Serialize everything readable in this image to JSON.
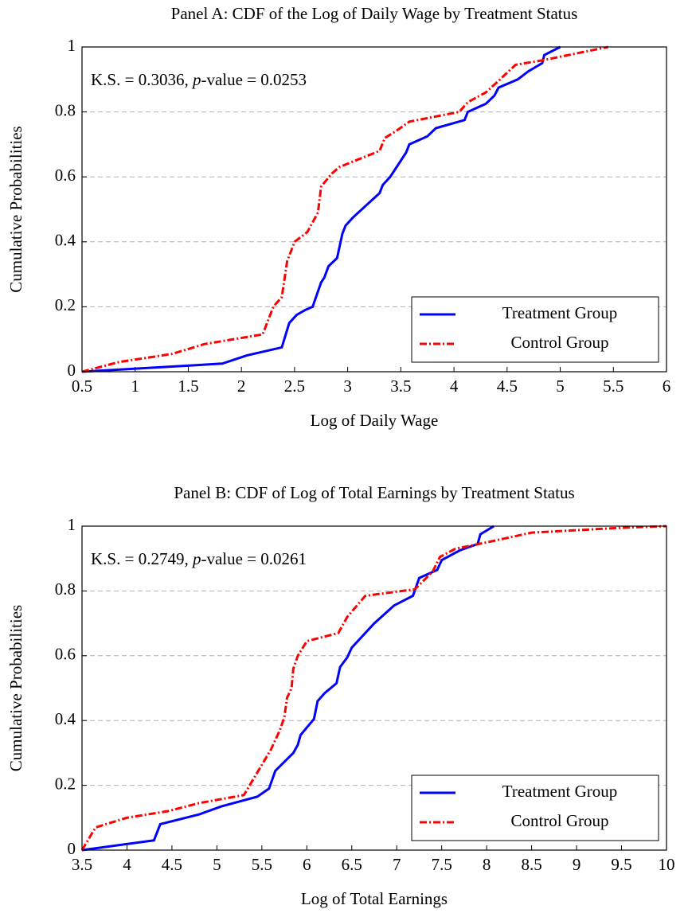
{
  "chart_data": [
    {
      "type": "line",
      "title": "Panel A: CDF of the Log of Daily Wage by Treatment Status",
      "xlabel": "Log of Daily Wage",
      "ylabel": "Cumulative Probabilities",
      "annotation": [
        "K.S. = 0.3036, ",
        "p",
        "-value = 0.0253"
      ],
      "xlim": [
        0.5,
        6
      ],
      "ylim": [
        0,
        1
      ],
      "xticks": [
        0.5,
        1,
        1.5,
        2,
        2.5,
        3,
        3.5,
        4,
        4.5,
        5,
        5.5,
        6
      ],
      "yticks": [
        0,
        0.2,
        0.4,
        0.6,
        0.8,
        1
      ],
      "grid": true,
      "legend": "lower right",
      "series": [
        {
          "name": "Treatment Group",
          "color": "#0000ff",
          "style": "solid",
          "x": [
            0.5,
            1.82,
            2.05,
            2.38,
            2.45,
            2.52,
            2.6,
            2.67,
            2.75,
            2.78,
            2.82,
            2.9,
            2.95,
            2.98,
            3.05,
            3.3,
            3.33,
            3.4,
            3.45,
            3.55,
            3.58,
            3.75,
            3.83,
            4.1,
            4.13,
            4.3,
            4.38,
            4.42,
            4.6,
            4.7,
            4.83,
            4.85,
            5.0
          ],
          "values": [
            0,
            0.025,
            0.05,
            0.075,
            0.15,
            0.175,
            0.19,
            0.2,
            0.275,
            0.29,
            0.325,
            0.35,
            0.425,
            0.45,
            0.475,
            0.55,
            0.575,
            0.6,
            0.625,
            0.675,
            0.7,
            0.725,
            0.75,
            0.775,
            0.8,
            0.825,
            0.85,
            0.875,
            0.9,
            0.925,
            0.95,
            0.975,
            1.0
          ]
        },
        {
          "name": "Control Group",
          "color": "#ff0000",
          "style": "dashdot",
          "x": [
            0.5,
            0.85,
            1.35,
            1.65,
            2.2,
            2.3,
            2.38,
            2.43,
            2.5,
            2.62,
            2.72,
            2.75,
            2.85,
            2.92,
            3.3,
            3.35,
            3.45,
            3.58,
            4.05,
            4.13,
            4.3,
            4.4,
            4.58,
            4.85,
            5.45
          ],
          "values": [
            0,
            0.03,
            0.055,
            0.085,
            0.115,
            0.2,
            0.23,
            0.34,
            0.4,
            0.43,
            0.49,
            0.57,
            0.61,
            0.63,
            0.68,
            0.72,
            0.74,
            0.77,
            0.8,
            0.83,
            0.86,
            0.89,
            0.945,
            0.96,
            1.0
          ]
        }
      ]
    },
    {
      "type": "line",
      "title": "Panel B: CDF of Log of Total Earnings by Treatment Status",
      "xlabel": "Log of Total Earnings",
      "ylabel": "Cumulative Probabilities",
      "annotation": [
        "K.S. = 0.2749, ",
        "p",
        "-value = 0.0261"
      ],
      "xlim": [
        3.5,
        10
      ],
      "ylim": [
        0,
        1
      ],
      "xticks": [
        3.5,
        4,
        4.5,
        5,
        5.5,
        6,
        6.5,
        7,
        7.5,
        8,
        8.5,
        9,
        9.5,
        10
      ],
      "yticks": [
        0,
        0.2,
        0.4,
        0.6,
        0.8,
        1
      ],
      "grid": true,
      "legend": "lower right",
      "series": [
        {
          "name": "Treatment Group",
          "color": "#0000ff",
          "style": "solid",
          "x": [
            3.5,
            4.3,
            4.37,
            4.8,
            5.05,
            5.45,
            5.58,
            5.65,
            5.85,
            5.9,
            5.93,
            6.08,
            6.12,
            6.2,
            6.33,
            6.37,
            6.45,
            6.5,
            6.75,
            6.97,
            7.18,
            7.25,
            7.45,
            7.5,
            7.7,
            7.9,
            7.93,
            8.08
          ],
          "values": [
            0,
            0.03,
            0.08,
            0.11,
            0.135,
            0.165,
            0.19,
            0.245,
            0.3,
            0.325,
            0.355,
            0.405,
            0.46,
            0.485,
            0.515,
            0.565,
            0.595,
            0.625,
            0.7,
            0.755,
            0.785,
            0.84,
            0.865,
            0.895,
            0.925,
            0.945,
            0.975,
            1.0
          ]
        },
        {
          "name": "Control Group",
          "color": "#ff0000",
          "style": "dashdot",
          "x": [
            3.5,
            3.65,
            4.0,
            4.45,
            4.8,
            5.3,
            5.45,
            5.6,
            5.7,
            5.75,
            5.78,
            5.83,
            5.85,
            5.9,
            6.0,
            6.35,
            6.45,
            6.65,
            7.2,
            7.4,
            7.48,
            7.65,
            8.0,
            8.5,
            9.5,
            10
          ],
          "values": [
            0,
            0.07,
            0.1,
            0.12,
            0.145,
            0.17,
            0.24,
            0.31,
            0.37,
            0.41,
            0.47,
            0.5,
            0.56,
            0.6,
            0.645,
            0.67,
            0.72,
            0.785,
            0.805,
            0.86,
            0.905,
            0.93,
            0.95,
            0.98,
            0.995,
            1.0
          ]
        }
      ]
    }
  ]
}
